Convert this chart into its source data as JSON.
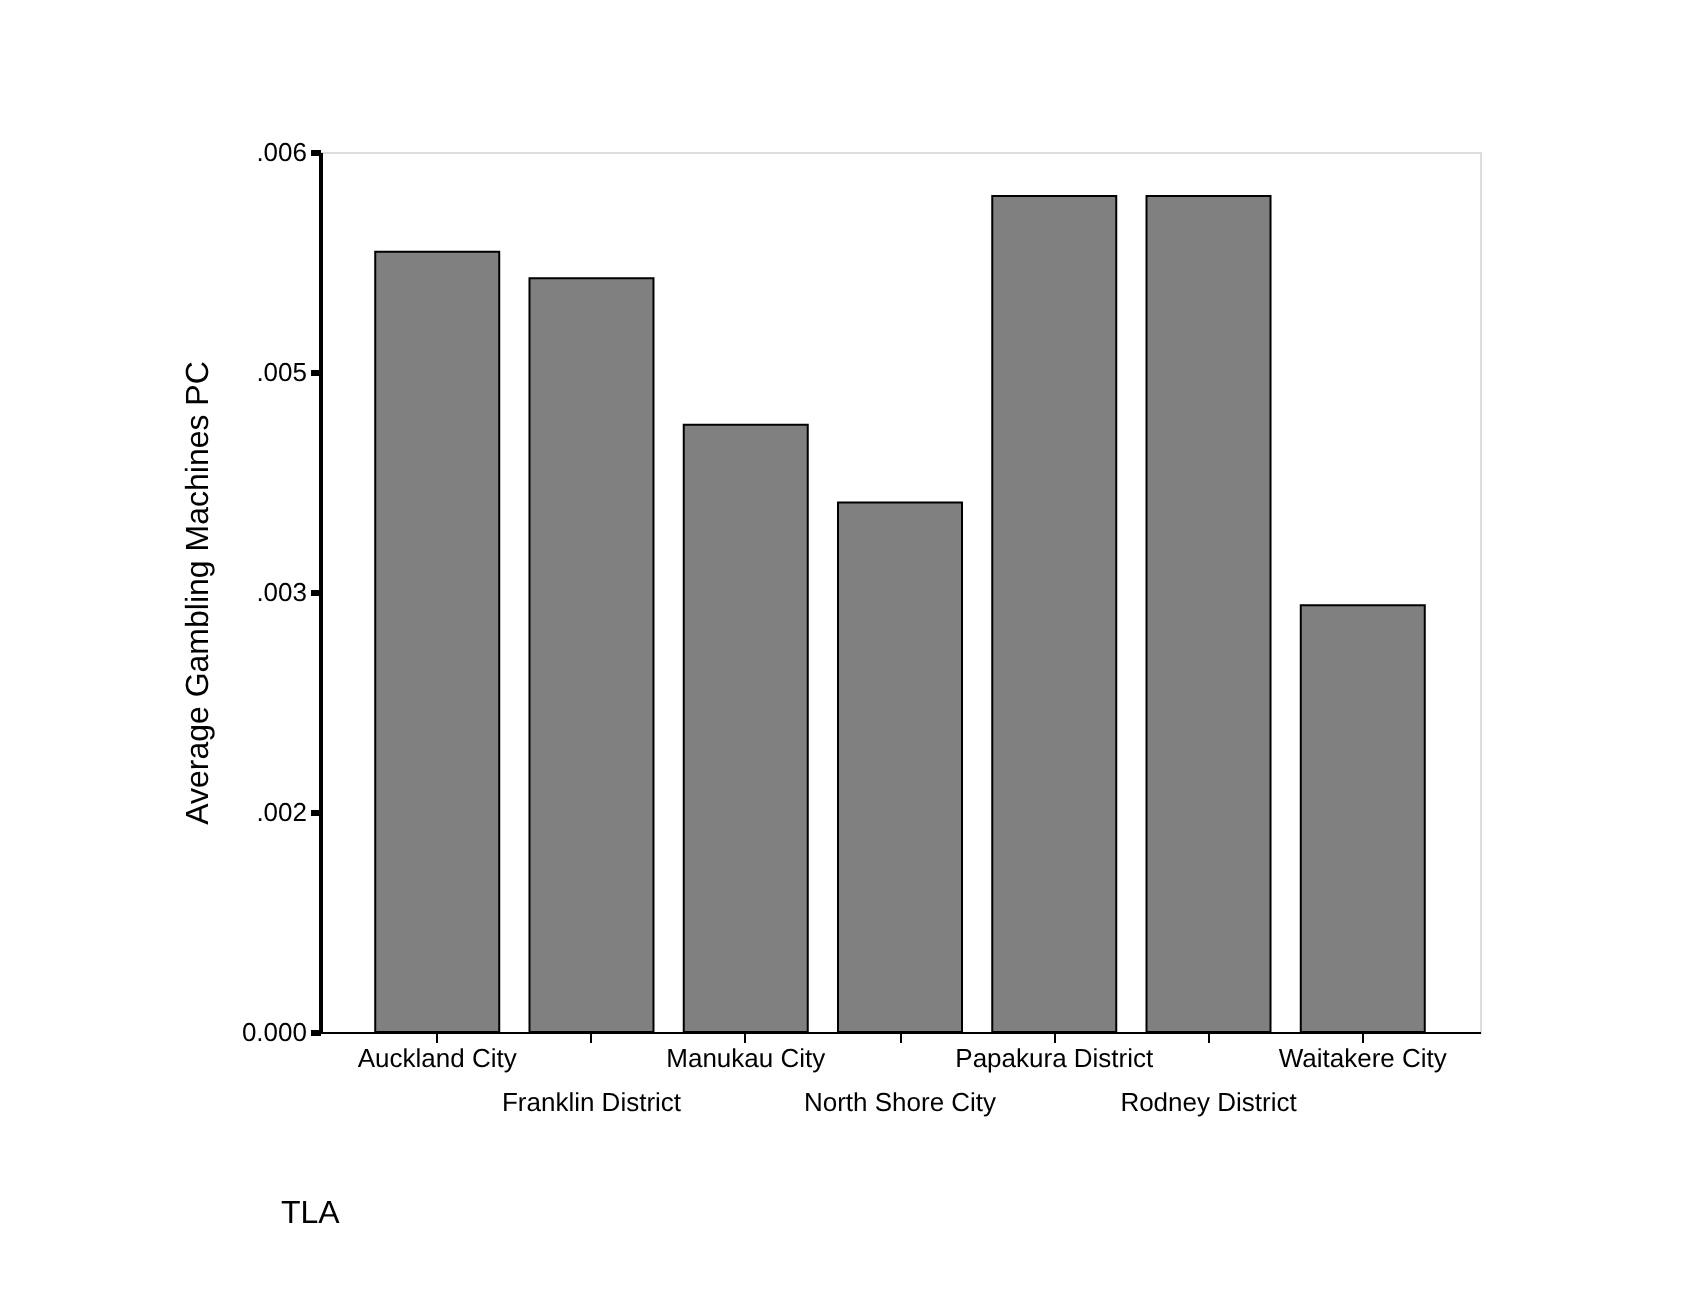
{
  "chart_data": {
    "type": "bar",
    "xlabel": "TLA",
    "ylabel": "Average Gambling Machines PC",
    "categories": [
      "Auckland City",
      "Franklin District",
      "Manukau City",
      "North Shore City",
      "Papakura District",
      "Rodney District",
      "Waitakere City"
    ],
    "values": [
      0.00532,
      0.00514,
      0.00414,
      0.00361,
      0.0057,
      0.0057,
      0.00291
    ],
    "color": "#808080",
    "ylim": [
      0,
      0.006
    ],
    "yticks": [
      {
        "value": 0,
        "label": "0.000"
      },
      {
        "value": 0.0015,
        "label": ".002"
      },
      {
        "value": 0.003,
        "label": ".003"
      },
      {
        "value": 0.0045,
        "label": ".005"
      },
      {
        "value": 0.006,
        "label": ".006"
      }
    ],
    "grid": false
  }
}
